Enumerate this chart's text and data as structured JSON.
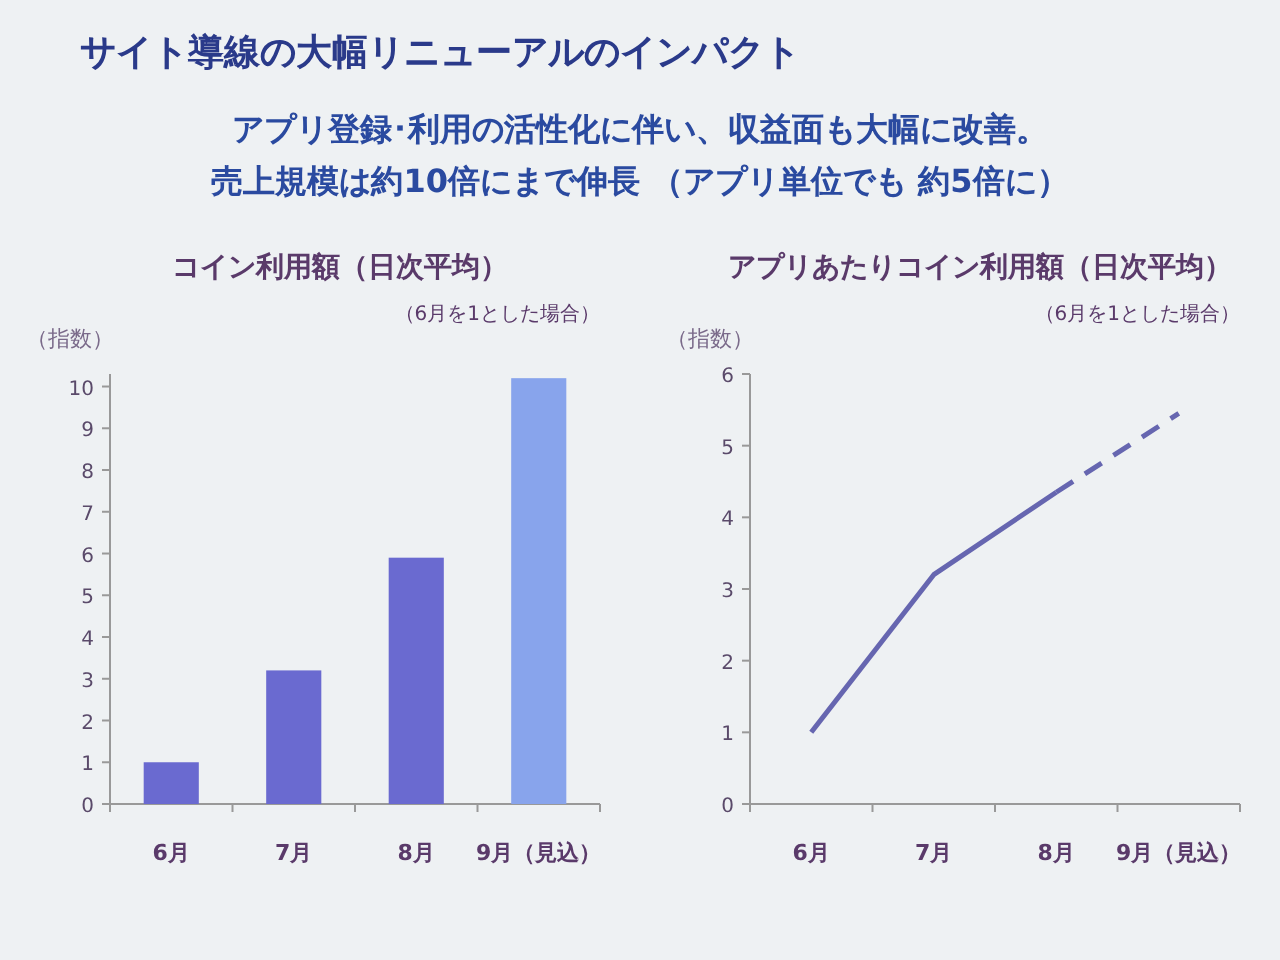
{
  "chart_data": [
    {
      "type": "other",
      "title": "サイト導線の大幅リニューアルのインパクト",
      "subtitle": "アプリ登録･利用の活性化に伴い、収益面も大幅に改善。",
      "annotations": [
        "売上規模は約10倍にまで伸長 （アプリ単位でも 約5倍に）"
      ]
    },
    {
      "type": "bar",
      "title": "コイン利用額（日次平均）",
      "subtitle": "（6月を1とした場合）",
      "ylabel": "（指数）",
      "categories": [
        "6月",
        "7月",
        "8月",
        "9月（見込）"
      ],
      "values": [
        1,
        3.2,
        5.9,
        10.2
      ],
      "colors": [
        "#6a6ad0",
        "#6a6ad0",
        "#6a6ad0",
        "#88a4ec"
      ],
      "ylim": [
        0,
        10.3
      ],
      "yticks": [
        0,
        1,
        2,
        3,
        4,
        5,
        6,
        7,
        8,
        9,
        10
      ],
      "grid": false
    },
    {
      "type": "line",
      "title": "アプリあたりコイン利用額（日次平均）",
      "subtitle": "（6月を1とした場合）",
      "ylabel": "（指数）",
      "categories": [
        "6月",
        "7月",
        "8月",
        "9月（見込）"
      ],
      "ylim": [
        0,
        6
      ],
      "yticks": [
        0,
        1,
        2,
        3,
        4,
        5,
        6
      ],
      "grid": false,
      "marker": "none",
      "series": [
        {
          "color": "#6666b0",
          "values": [
            1,
            3.2,
            4.35,
            null
          ],
          "line_style": "solid"
        },
        {
          "color": "#6666b0",
          "values": [
            null,
            null,
            4.35,
            5.45
          ],
          "line_style": "dashed"
        }
      ]
    }
  ]
}
